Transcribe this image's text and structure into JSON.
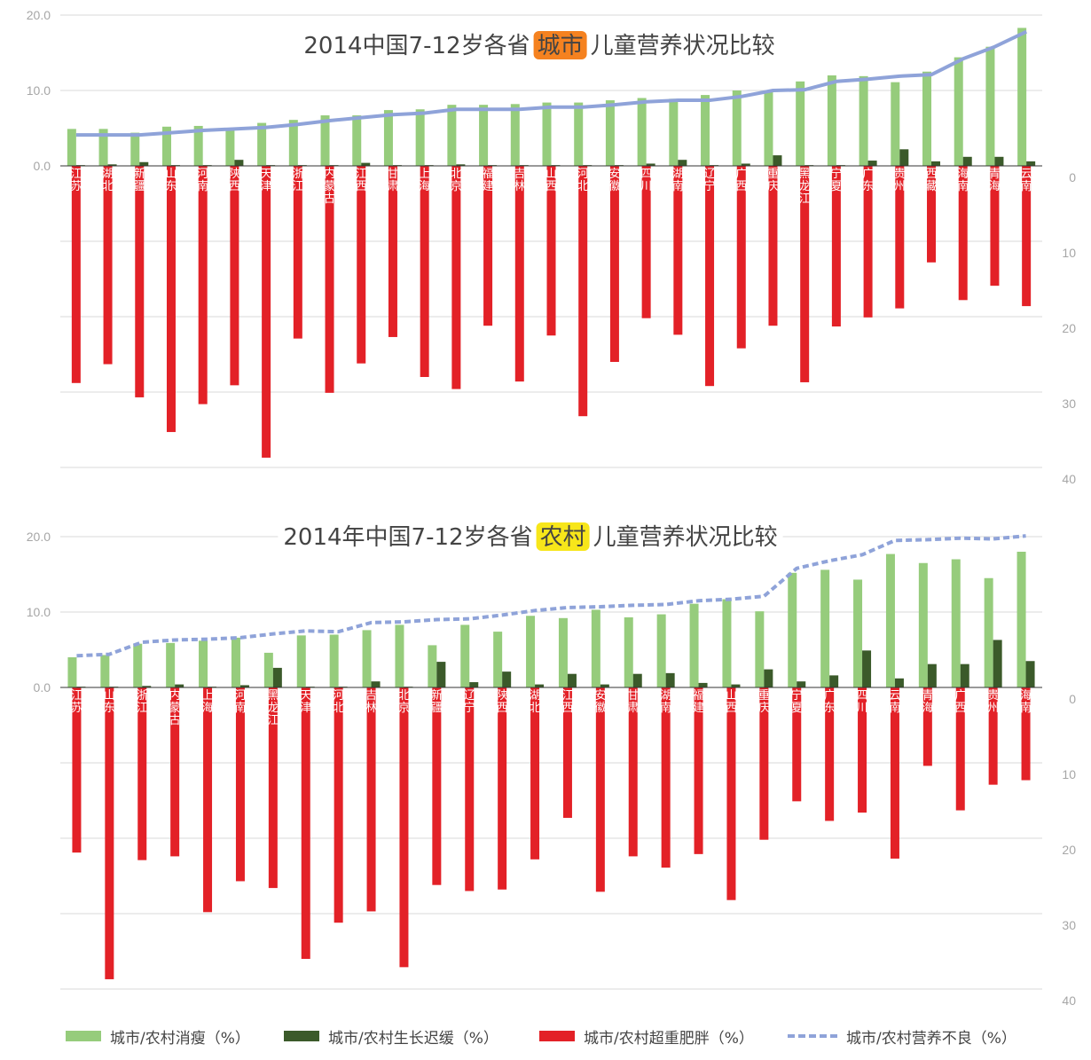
{
  "chart_data": [
    {
      "type": "bar",
      "title_before": "2014中国7-12岁各省",
      "title_highlight": "城市",
      "title_after": "儿童营养状况比较",
      "highlight_color": "#f58220",
      "categories": [
        "江苏",
        "湖北",
        "新疆",
        "山东",
        "河南",
        "陕西",
        "天津",
        "浙江",
        "内蒙古",
        "江西",
        "甘肃",
        "上海",
        "北京",
        "福建",
        "吉林",
        "山西",
        "河北",
        "安徽",
        "四川",
        "湖南",
        "辽宁",
        "广西",
        "重庆",
        "黑龙江",
        "宁夏",
        "广东",
        "贵州",
        "西藏",
        "海南",
        "青海",
        "云南"
      ],
      "left_ticks": [
        "20.0",
        "10.0",
        "0.0"
      ],
      "right_ticks": [
        "0",
        "10",
        "20",
        "30",
        "40"
      ],
      "ylim_top": [
        0,
        20
      ],
      "ylim_bottom": [
        0,
        40
      ],
      "series": [
        {
          "name": "城市/农村消瘦（%）",
          "axis": "top",
          "color": "#96cc7c",
          "values": [
            4.9,
            4.9,
            4.4,
            5.2,
            5.3,
            5.0,
            5.7,
            6.1,
            6.7,
            6.7,
            7.4,
            7.5,
            8.1,
            8.1,
            8.2,
            8.4,
            8.4,
            8.7,
            9.0,
            8.9,
            9.4,
            10.0,
            10.0,
            11.2,
            12.0,
            11.9,
            11.1,
            12.5,
            14.4,
            15.8,
            18.3
          ]
        },
        {
          "name": "城市/农村生长迟缓（%）",
          "axis": "top",
          "color": "#3b5a2a",
          "values": [
            0.1,
            0.2,
            0.5,
            0.1,
            0.1,
            0.8,
            0.1,
            0.1,
            0.1,
            0.4,
            0.1,
            0.1,
            0.2,
            0.1,
            0.1,
            0.1,
            0.1,
            0.1,
            0.3,
            0.8,
            0.1,
            0.3,
            1.4,
            0.1,
            0.1,
            0.7,
            2.2,
            0.6,
            1.2,
            1.2,
            0.6
          ]
        },
        {
          "name": "城市/农村超重肥胖（%）",
          "axis": "bottom",
          "color": "#e32127",
          "values": [
            28.8,
            26.3,
            30.7,
            35.3,
            31.6,
            29.1,
            38.7,
            22.9,
            30.1,
            26.2,
            22.7,
            28.0,
            29.6,
            21.2,
            28.6,
            22.5,
            33.2,
            26.0,
            20.2,
            22.4,
            29.2,
            24.2,
            21.2,
            28.7,
            21.3,
            20.1,
            18.9,
            12.8,
            17.8,
            15.9,
            18.6
          ]
        },
        {
          "name": "城市/农村营养不良（%）",
          "axis": "top",
          "line": "solid",
          "color": "#8fa3d9",
          "values": [
            4.1,
            4.1,
            4.1,
            4.4,
            4.7,
            4.9,
            5.1,
            5.5,
            6.0,
            6.4,
            6.8,
            7.0,
            7.5,
            7.5,
            7.5,
            7.8,
            7.8,
            8.1,
            8.5,
            8.7,
            8.7,
            9.2,
            10.0,
            10.1,
            11.2,
            11.5,
            11.9,
            12.1,
            14.2,
            15.8,
            17.8
          ]
        }
      ]
    },
    {
      "type": "bar",
      "title_before": "2014年中国7-12岁各省",
      "title_highlight": "农村",
      "title_after": "儿童营养状况比较",
      "highlight_color": "#f7e61a",
      "categories": [
        "江苏",
        "山东",
        "浙江",
        "内蒙古",
        "上海",
        "河南",
        "黑龙江",
        "天津",
        "河北",
        "吉林",
        "北京",
        "新疆",
        "辽宁",
        "陕西",
        "湖北",
        "江西",
        "安徽",
        "甘肃",
        "湖南",
        "福建",
        "山西",
        "重庆",
        "宁夏",
        "广东",
        "四川",
        "云南",
        "青海",
        "广西",
        "贵州",
        "海南"
      ],
      "left_ticks": [
        "20.0",
        "10.0",
        "0.0"
      ],
      "right_ticks": [
        "0",
        "10",
        "20",
        "30",
        "40"
      ],
      "ylim_top": [
        0,
        20
      ],
      "ylim_bottom": [
        0,
        40
      ],
      "series": [
        {
          "name": "城市/农村消瘦（%）",
          "axis": "top",
          "color": "#96cc7c",
          "values": [
            4.0,
            4.3,
            5.8,
            5.9,
            6.2,
            6.6,
            4.6,
            6.9,
            7.0,
            7.6,
            8.3,
            5.6,
            8.3,
            7.4,
            9.5,
            9.2,
            10.3,
            9.3,
            9.7,
            11.1,
            11.7,
            10.1,
            15.2,
            15.6,
            14.3,
            17.7,
            16.5,
            17.0,
            14.5,
            18.0
          ]
        },
        {
          "name": "城市/农村生长迟缓（%）",
          "axis": "top",
          "color": "#3b5a2a",
          "values": [
            0.1,
            0.1,
            0.2,
            0.4,
            0.1,
            0.3,
            2.6,
            0.1,
            0.1,
            0.8,
            0.1,
            3.4,
            0.7,
            2.1,
            0.4,
            1.8,
            0.4,
            1.8,
            1.9,
            0.6,
            0.4,
            2.4,
            0.8,
            1.6,
            4.9,
            1.2,
            3.1,
            3.1,
            6.3,
            3.5
          ]
        },
        {
          "name": "城市/农村超重肥胖（%）",
          "axis": "bottom",
          "color": "#e32127",
          "values": [
            21.9,
            38.7,
            22.9,
            22.4,
            29.8,
            25.7,
            26.6,
            36.0,
            31.2,
            29.7,
            37.1,
            26.2,
            27.0,
            26.8,
            22.8,
            17.3,
            27.1,
            22.4,
            23.9,
            22.1,
            28.2,
            20.2,
            15.1,
            17.7,
            16.6,
            22.7,
            10.4,
            16.3,
            12.9,
            12.3
          ]
        },
        {
          "name": "城市/农村营养不良（%）",
          "axis": "top",
          "line": "dashed",
          "color": "#8fa3d9",
          "values": [
            4.2,
            4.4,
            6.0,
            6.3,
            6.4,
            6.6,
            7.1,
            7.5,
            7.4,
            8.6,
            8.7,
            9.0,
            9.1,
            9.6,
            10.2,
            10.6,
            10.7,
            10.9,
            11.0,
            11.5,
            11.7,
            12.1,
            15.8,
            16.8,
            17.6,
            19.5,
            19.6,
            19.8,
            19.7,
            20.1
          ]
        }
      ]
    }
  ],
  "legend": [
    {
      "label": "城市/农村消瘦（%）",
      "color": "#96cc7c",
      "style": "box"
    },
    {
      "label": "城市/农村生长迟缓（%）",
      "color": "#3b5a2a",
      "style": "box"
    },
    {
      "label": "城市/农村超重肥胖（%）",
      "color": "#e32127",
      "style": "box"
    },
    {
      "label": "城市/农村营养不良（%）",
      "color": "#8fa3d9",
      "style": "dash"
    }
  ]
}
